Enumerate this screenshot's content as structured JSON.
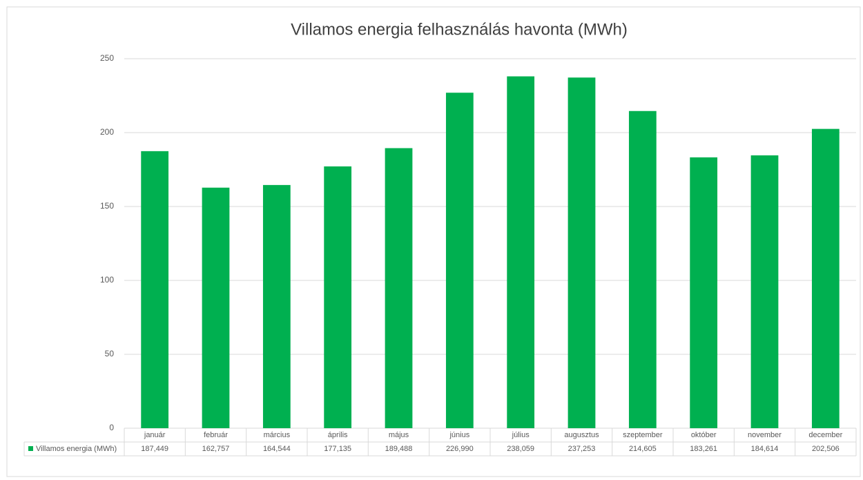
{
  "chart_data": {
    "type": "bar",
    "title": "Villamos energia felhasználás havonta (MWh)",
    "categories": [
      "január",
      "február",
      "március",
      "április",
      "május",
      "június",
      "július",
      "augusztus",
      "szeptember",
      "október",
      "november",
      "december"
    ],
    "series": [
      {
        "name": "Villamos energia (MWh)",
        "color": "#00b050",
        "values": [
          187.449,
          162.757,
          164.544,
          177.135,
          189.488,
          226.99,
          238.059,
          237.253,
          214.605,
          183.261,
          184.614,
          202.506
        ],
        "value_labels": [
          "187,449",
          "162,757",
          "164,544",
          "177,135",
          "189,488",
          "226,990",
          "238,059",
          "237,253",
          "214,605",
          "183,261",
          "184,614",
          "202,506"
        ]
      }
    ],
    "ylim": [
      0,
      250
    ],
    "yticks": [
      0,
      50,
      100,
      150,
      200,
      250
    ],
    "grid": true,
    "data_table": true
  }
}
